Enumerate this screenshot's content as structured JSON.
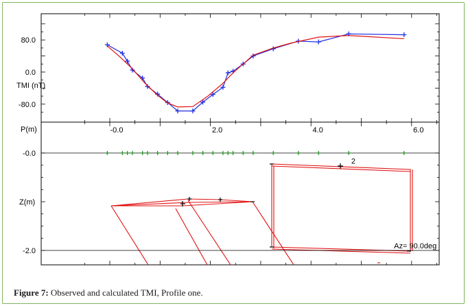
{
  "caption": {
    "label": "Figure 7:",
    "text": "Observed and calculated TMI, Profile one."
  },
  "chart_data": [
    {
      "type": "line",
      "ylabel": "TMI (nT)",
      "xlabel": "P(m)",
      "ylim": [
        -115,
        120
      ],
      "xlim": [
        -0.5,
        6.5
      ],
      "y_ticks": [
        80,
        0,
        -80
      ],
      "y_tick_labels": [
        "80.0",
        "0.0",
        "-80.0"
      ],
      "x_ticks": [
        0,
        2,
        4,
        6
      ],
      "x_tick_labels": [
        "-0.0",
        "2.0",
        "4.0",
        "6.0"
      ],
      "series": [
        {
          "role": "observed",
          "color": "#1f2ee0",
          "marker": "plus",
          "x": [
            -0.05,
            0.25,
            0.35,
            0.45,
            0.65,
            0.75,
            0.95,
            1.15,
            1.35,
            1.65,
            1.85,
            2.05,
            2.25,
            2.35,
            2.45,
            2.65,
            2.85,
            3.25,
            3.75,
            4.15,
            4.75,
            5.85
          ],
          "y": [
            68,
            47,
            27,
            5,
            -15,
            -36,
            -55,
            -76,
            -97,
            -97,
            -75,
            -56,
            -38,
            -2,
            2,
            20,
            40,
            58,
            77,
            75,
            95,
            93
          ]
        },
        {
          "role": "calculated",
          "color": "#e11010",
          "marker": "cross",
          "x": [
            -0.05,
            0.2,
            0.45,
            0.7,
            0.95,
            1.15,
            1.35,
            1.65,
            1.95,
            2.25,
            2.45,
            2.65,
            2.85,
            3.25,
            3.6,
            4.15,
            4.75,
            5.85
          ],
          "y": [
            65,
            38,
            8,
            -28,
            -58,
            -77,
            -87,
            -86,
            -60,
            -28,
            -2,
            20,
            42,
            60,
            72,
            87,
            91,
            83
          ]
        }
      ]
    },
    {
      "type": "scatter",
      "ylabel": "Z(m)",
      "ylim": [
        -2.2,
        0.1
      ],
      "xlim": [
        -0.5,
        6.5
      ],
      "y_ticks": [
        0,
        -2
      ],
      "y_tick_labels": [
        "-0.0",
        "-2.0"
      ],
      "surface_stations_x": [
        -0.05,
        0.25,
        0.35,
        0.45,
        0.65,
        0.75,
        0.95,
        1.15,
        1.35,
        1.65,
        1.85,
        2.05,
        2.25,
        2.35,
        2.45,
        2.65,
        2.85,
        3.25,
        3.75,
        4.15,
        4.75,
        5.85
      ],
      "station_color": "#238a23",
      "annotations": [
        {
          "text": "2",
          "x": 4.8,
          "y": -0.22
        },
        {
          "text": "Az= 90.0deg",
          "x": 5.65,
          "y": -1.96
        }
      ]
    }
  ]
}
